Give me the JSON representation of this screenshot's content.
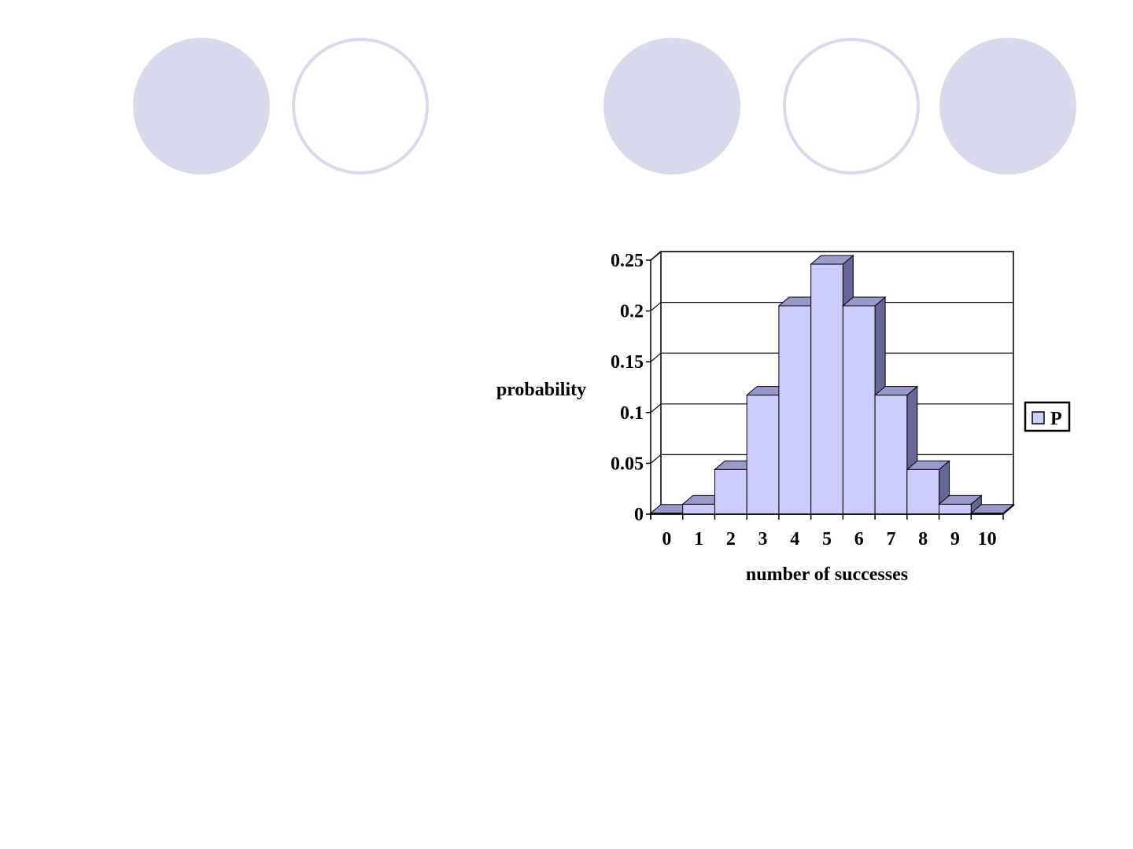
{
  "decorations": [
    {
      "style": "filled"
    },
    {
      "style": "outline"
    },
    {
      "style": "filled"
    },
    {
      "style": "outline"
    },
    {
      "style": "filled"
    }
  ],
  "chart_data": {
    "type": "bar",
    "title": "",
    "xlabel": "number of successes",
    "ylabel": "probability",
    "categories": [
      "0",
      "1",
      "2",
      "3",
      "4",
      "5",
      "6",
      "7",
      "8",
      "9",
      "10"
    ],
    "series": [
      {
        "name": "P",
        "values": [
          0.001,
          0.0098,
          0.0439,
          0.1172,
          0.2051,
          0.2461,
          0.2051,
          0.1172,
          0.0439,
          0.0098,
          0.001
        ]
      }
    ],
    "ylim": [
      0,
      0.25
    ],
    "yticks": [
      "0",
      "0.05",
      "0.1",
      "0.15",
      "0.2",
      "0.25"
    ],
    "grid": true,
    "legend": "right",
    "colors": {
      "bar_face": "#ccccff",
      "bar_top": "#9999cc",
      "bar_side": "#666699"
    }
  }
}
